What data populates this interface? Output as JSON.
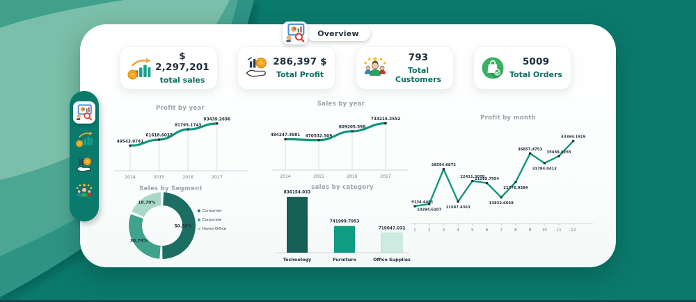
{
  "app": {
    "tab": {
      "label": "Overview",
      "icon": "presentation-analytics-icon"
    }
  },
  "kpis": [
    {
      "icon": "sales-growth-icon",
      "value": "$ 2,297,201",
      "label": "total sales"
    },
    {
      "icon": "profit-hand-icon",
      "value": "286,397 $",
      "label": "Total Profit"
    },
    {
      "icon": "customers-icon",
      "value": "793",
      "label": "Total Customers"
    },
    {
      "icon": "orders-bag-icon",
      "value": "5009",
      "label": "Total Orders"
    }
  ],
  "sidebar": {
    "items": [
      {
        "name": "overview",
        "icon": "presentation-analytics-icon",
        "active": true
      },
      {
        "name": "sales",
        "icon": "sales-growth-icon",
        "active": false
      },
      {
        "name": "profit",
        "icon": "profit-hand-icon",
        "active": false
      },
      {
        "name": "customers",
        "icon": "customers-icon",
        "active": false
      }
    ]
  },
  "chart_data": [
    {
      "id": "profit_by_year",
      "type": "line",
      "title": "Profit by year",
      "categories": [
        "2014",
        "2015",
        "2016",
        "2017"
      ],
      "values": [
        49543.9741,
        61618.6037,
        81795.1743,
        93439.2696
      ],
      "point_labels": [
        "49543.9741",
        "61618.6037",
        "81795.1743",
        "93439.2696"
      ],
      "xlabel": "",
      "ylabel": "",
      "ylim": [
        0,
        107000
      ],
      "grid": false,
      "droplines": true,
      "smooth": true,
      "line_color": "#10967d"
    },
    {
      "id": "sales_by_year",
      "type": "line",
      "title": "Sales by year",
      "categories": [
        "2014",
        "2015",
        "2016",
        "2017"
      ],
      "values": [
        484247.4981,
        470532.509,
        609205.598,
        733215.2552
      ],
      "point_labels": [
        "484247.4981",
        "470532.509",
        "609205.598",
        "733215.2552"
      ],
      "xlabel": "",
      "ylabel": "",
      "ylim": [
        0,
        860000
      ],
      "grid": false,
      "droplines": true,
      "smooth": true,
      "line_color": "#10967d"
    },
    {
      "id": "profit_by_month",
      "type": "line",
      "title": "Profit by month",
      "categories": [
        "1",
        "2",
        "3",
        "4",
        "5",
        "6",
        "7",
        "8",
        "9",
        "10",
        "11",
        "12"
      ],
      "values": [
        9134.4461,
        10294.6107,
        28594.6872,
        11587.4363,
        22411.3078,
        21285.7954,
        13832.6648,
        21776.9384,
        36857.4753,
        31784.0413,
        35468.4265,
        43369.1919
      ],
      "point_labels": [
        "9134.4461",
        "10294.6107",
        "28594.6872",
        "11587.4363",
        "22411.3078",
        "21285.7954",
        "13832.6648",
        "21776.9384",
        "36857.4753",
        "31784.0413",
        "35468.4265",
        "43369.1919"
      ],
      "labels_below": [
        1,
        3,
        6,
        7,
        9
      ],
      "xlabel": "",
      "ylabel": "",
      "ylim": [
        0,
        46000
      ],
      "grid": false,
      "droplines": false,
      "smooth": false,
      "line_color": "#10967d"
    },
    {
      "id": "sales_by_segment",
      "type": "pie",
      "title": "Seles by Segment",
      "labels": [
        "Consumer",
        "Corporate",
        "Home Office"
      ],
      "values": [
        50.56,
        30.74,
        18.7
      ],
      "slice_labels": [
        "50.56%",
        "30.74%",
        "18.70%"
      ],
      "colors": [
        "#1d6e62",
        "#3fa28a",
        "#a7d9c6"
      ],
      "donut": true,
      "legend_position": "right"
    },
    {
      "id": "sales_by_category",
      "type": "bar",
      "title": "sales by category",
      "categories": [
        "Technology",
        "Furniture",
        "Office Supplies"
      ],
      "values": [
        836154.033,
        741999.7953,
        719047.032
      ],
      "point_labels": [
        "836154.033",
        "741999.7953",
        "719047.032"
      ],
      "colors": [
        "#155f55",
        "#0e9d81",
        "#cdebe1"
      ],
      "xlabel": "",
      "ylabel": "",
      "ylim": [
        655000,
        840000
      ],
      "grid": false
    }
  ],
  "colors": {
    "background_teal": "#0a7a6d",
    "accent_teal": "#0c6f63",
    "value_text": "#1e2d3d",
    "chart_title_text": "#99a3a9",
    "axis_line": "#ccd5d8",
    "marker": "#20303c"
  }
}
